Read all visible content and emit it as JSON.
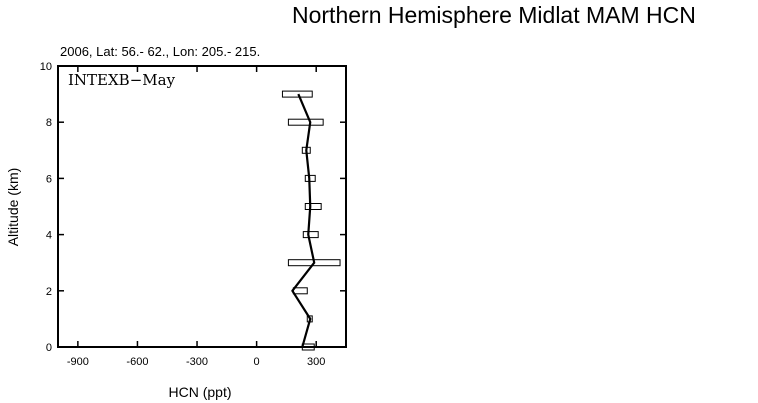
{
  "chart_data": {
    "type": "line",
    "title": "Northern Hemisphere Midlat MAM HCN",
    "subtitle": "2006, Lat: 56.- 62., Lon: 205.- 215.",
    "xlabel": "HCN (ppt)",
    "ylabel": "Altitude (km)",
    "annotation": "INTEXB−May",
    "xlim": [
      -1000,
      450
    ],
    "ylim": [
      0,
      10
    ],
    "xticks": [
      -900,
      -600,
      -300,
      0,
      300
    ],
    "xtick_labels": [
      "-900",
      "-600",
      "-300",
      "0",
      "300"
    ],
    "yticks": [
      0,
      2,
      4,
      6,
      8,
      10
    ],
    "ytick_labels": [
      "0",
      "2",
      "4",
      "6",
      "8",
      "10"
    ],
    "grid": false,
    "series": [
      {
        "altitude": [
          0,
          1,
          2,
          3,
          4,
          5,
          6,
          7,
          8,
          9
        ],
        "median": [
          230,
          270,
          180,
          290,
          260,
          270,
          265,
          250,
          270,
          210
        ],
        "box_low": [
          230,
          255,
          185,
          160,
          235,
          245,
          245,
          230,
          160,
          130
        ],
        "box_high": [
          290,
          280,
          255,
          420,
          310,
          325,
          295,
          270,
          335,
          280
        ]
      }
    ]
  }
}
